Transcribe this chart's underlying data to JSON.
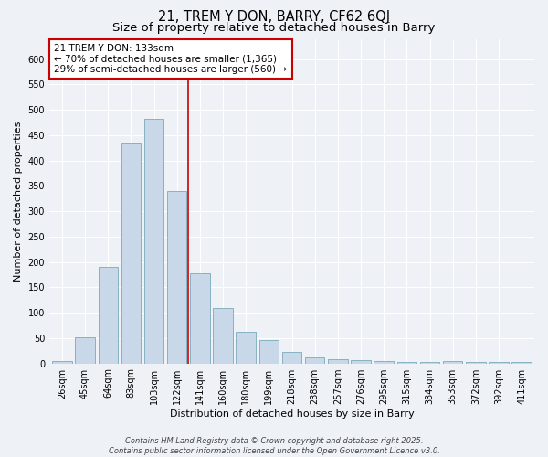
{
  "title1": "21, TREM Y DON, BARRY, CF62 6QJ",
  "title2": "Size of property relative to detached houses in Barry",
  "xlabel": "Distribution of detached houses by size in Barry",
  "ylabel": "Number of detached properties",
  "categories": [
    "26sqm",
    "45sqm",
    "64sqm",
    "83sqm",
    "103sqm",
    "122sqm",
    "141sqm",
    "160sqm",
    "180sqm",
    "199sqm",
    "218sqm",
    "238sqm",
    "257sqm",
    "276sqm",
    "295sqm",
    "315sqm",
    "334sqm",
    "353sqm",
    "372sqm",
    "392sqm",
    "411sqm"
  ],
  "values": [
    5,
    52,
    190,
    433,
    483,
    340,
    177,
    110,
    63,
    47,
    22,
    12,
    8,
    6,
    4,
    3,
    3,
    5,
    3,
    3,
    3
  ],
  "bar_color": "#c8d8e8",
  "bar_edge_color": "#7aaabb",
  "bar_linewidth": 0.6,
  "vline_x": 5.5,
  "vline_color": "#cc0000",
  "vline_linewidth": 1.2,
  "ylim": [
    0,
    640
  ],
  "yticks": [
    0,
    50,
    100,
    150,
    200,
    250,
    300,
    350,
    400,
    450,
    500,
    550,
    600
  ],
  "annotation_text": "21 TREM Y DON: 133sqm\n← 70% of detached houses are smaller (1,365)\n29% of semi-detached houses are larger (560) →",
  "annotation_box_color": "#ffffff",
  "annotation_box_edge": "#cc0000",
  "bg_color": "#eef2f7",
  "grid_color": "#ffffff",
  "footer_line1": "Contains HM Land Registry data © Crown copyright and database right 2025.",
  "footer_line2": "Contains public sector information licensed under the Open Government Licence v3.0.",
  "title1_fontsize": 10.5,
  "title2_fontsize": 9.5,
  "axis_label_fontsize": 8,
  "tick_fontsize": 7,
  "annotation_fontsize": 7.5,
  "footer_fontsize": 6
}
